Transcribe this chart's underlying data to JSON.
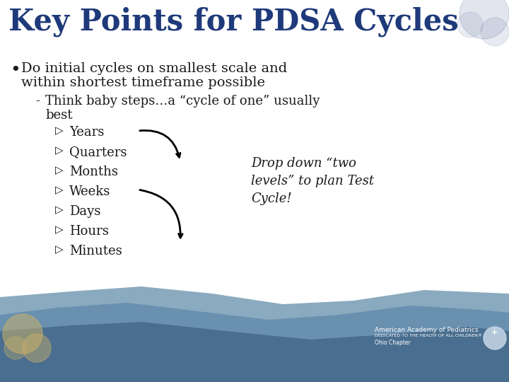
{
  "title": "Key Points for PDSA Cycles",
  "title_color": "#1F3A7A",
  "title_fontsize": 30,
  "bg_color": "#FFFFFF",
  "bullet1_line1": "Do initial cycles on smallest scale and",
  "bullet1_line2": "within shortest timeframe possible",
  "sub_bullet_dash": "-",
  "sub_bullet_line1": "Think baby steps…a “cycle of one” usually",
  "sub_bullet_line2": "best",
  "list_items": [
    "Years",
    "Quarters",
    "Months",
    "Weeks",
    "Days",
    "Hours",
    "Minutes"
  ],
  "annotation": "Drop down “two\nlevels” to plan Test\nCycle!",
  "text_color": "#1a1a1a",
  "wave_color_back": "#8AAABF",
  "wave_color_mid": "#6A90B0",
  "wave_color_front": "#4A6E8F",
  "footer_text": "American Academy of Pediatrics",
  "footer_sub1": "DEDICATED TO THE HEALTH OF ALL CHILDREN®",
  "footer_sub2": "Ohio Chapter",
  "deco_color": "#C8B06A"
}
